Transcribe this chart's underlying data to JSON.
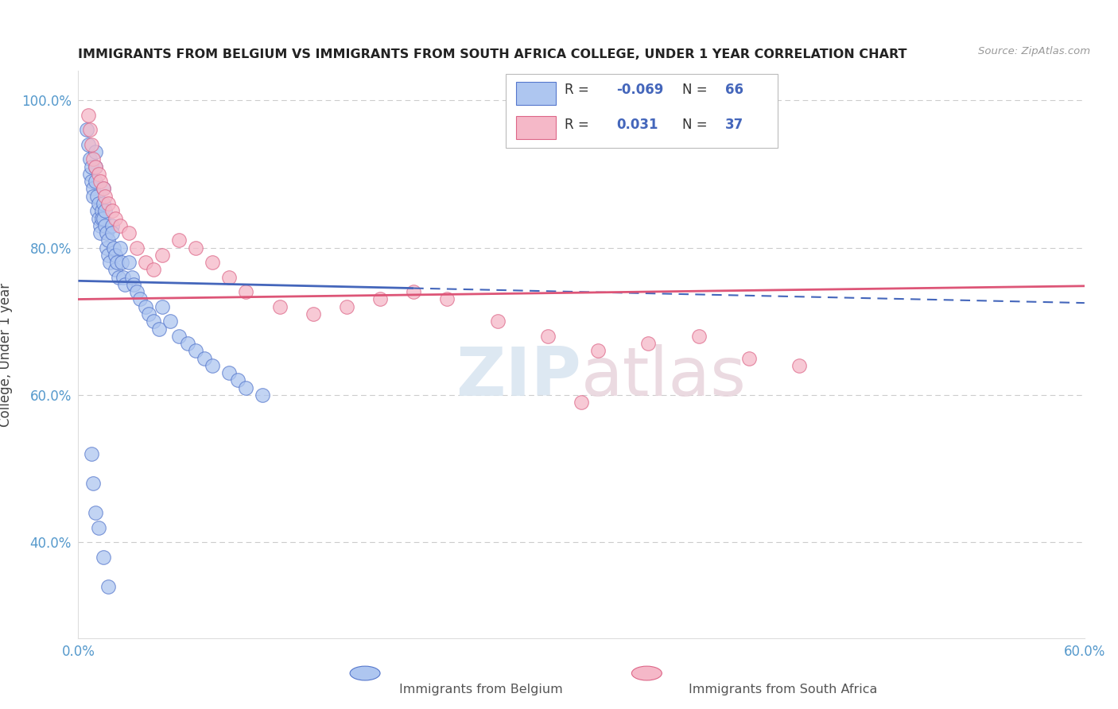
{
  "title": "IMMIGRANTS FROM BELGIUM VS IMMIGRANTS FROM SOUTH AFRICA COLLEGE, UNDER 1 YEAR CORRELATION CHART",
  "source": "Source: ZipAtlas.com",
  "ylabel": "College, Under 1 year",
  "xlim": [
    0.0,
    0.6
  ],
  "ylim": [
    0.27,
    1.04
  ],
  "yticks": [
    0.4,
    0.6,
    0.8,
    1.0
  ],
  "ytick_labels": [
    "40.0%",
    "60.0%",
    "80.0%",
    "100.0%"
  ],
  "xticks": [
    0.0,
    0.1,
    0.2,
    0.3,
    0.4,
    0.5,
    0.6
  ],
  "xtick_labels": [
    "0.0%",
    "",
    "",
    "",
    "",
    "",
    "60.0%"
  ],
  "belgium_R": -0.069,
  "belgium_N": 66,
  "southafrica_R": 0.031,
  "southafrica_N": 37,
  "belgium_color": "#aec6f0",
  "southafrica_color": "#f5b8c8",
  "belgium_edge_color": "#5577cc",
  "southafrica_edge_color": "#dd6688",
  "belgium_line_color": "#4466bb",
  "southafrica_line_color": "#dd5577",
  "watermark": "ZIPatlas",
  "bel_line_x0": 0.0,
  "bel_line_y0": 0.755,
  "bel_line_x1": 0.6,
  "bel_line_y1": 0.725,
  "sa_line_x0": 0.0,
  "sa_line_y0": 0.73,
  "sa_line_x1": 0.6,
  "sa_line_y1": 0.748,
  "bel_scatter_x": [
    0.005,
    0.006,
    0.007,
    0.007,
    0.008,
    0.008,
    0.009,
    0.009,
    0.01,
    0.01,
    0.01,
    0.011,
    0.011,
    0.012,
    0.012,
    0.013,
    0.013,
    0.014,
    0.014,
    0.015,
    0.015,
    0.015,
    0.016,
    0.016,
    0.017,
    0.017,
    0.018,
    0.018,
    0.019,
    0.02,
    0.02,
    0.021,
    0.022,
    0.022,
    0.023,
    0.024,
    0.025,
    0.026,
    0.027,
    0.028,
    0.03,
    0.032,
    0.033,
    0.035,
    0.037,
    0.04,
    0.042,
    0.045,
    0.048,
    0.05,
    0.055,
    0.06,
    0.065,
    0.07,
    0.075,
    0.08,
    0.09,
    0.095,
    0.1,
    0.11,
    0.008,
    0.009,
    0.01,
    0.012,
    0.015,
    0.018
  ],
  "bel_scatter_y": [
    0.96,
    0.94,
    0.92,
    0.9,
    0.91,
    0.89,
    0.88,
    0.87,
    0.93,
    0.91,
    0.89,
    0.87,
    0.85,
    0.86,
    0.84,
    0.83,
    0.82,
    0.85,
    0.84,
    0.88,
    0.86,
    0.84,
    0.85,
    0.83,
    0.82,
    0.8,
    0.81,
    0.79,
    0.78,
    0.83,
    0.82,
    0.8,
    0.79,
    0.77,
    0.78,
    0.76,
    0.8,
    0.78,
    0.76,
    0.75,
    0.78,
    0.76,
    0.75,
    0.74,
    0.73,
    0.72,
    0.71,
    0.7,
    0.69,
    0.72,
    0.7,
    0.68,
    0.67,
    0.66,
    0.65,
    0.64,
    0.63,
    0.62,
    0.61,
    0.6,
    0.52,
    0.48,
    0.44,
    0.42,
    0.38,
    0.34
  ],
  "sa_scatter_x": [
    0.006,
    0.007,
    0.008,
    0.009,
    0.01,
    0.012,
    0.013,
    0.015,
    0.016,
    0.018,
    0.02,
    0.022,
    0.025,
    0.03,
    0.035,
    0.04,
    0.045,
    0.05,
    0.06,
    0.07,
    0.08,
    0.09,
    0.1,
    0.12,
    0.14,
    0.16,
    0.18,
    0.2,
    0.22,
    0.25,
    0.28,
    0.31,
    0.34,
    0.37,
    0.4,
    0.43,
    0.3
  ],
  "sa_scatter_y": [
    0.98,
    0.96,
    0.94,
    0.92,
    0.91,
    0.9,
    0.89,
    0.88,
    0.87,
    0.86,
    0.85,
    0.84,
    0.83,
    0.82,
    0.8,
    0.78,
    0.77,
    0.79,
    0.81,
    0.8,
    0.78,
    0.76,
    0.74,
    0.72,
    0.71,
    0.72,
    0.73,
    0.74,
    0.73,
    0.7,
    0.68,
    0.66,
    0.67,
    0.68,
    0.65,
    0.64,
    0.59
  ]
}
